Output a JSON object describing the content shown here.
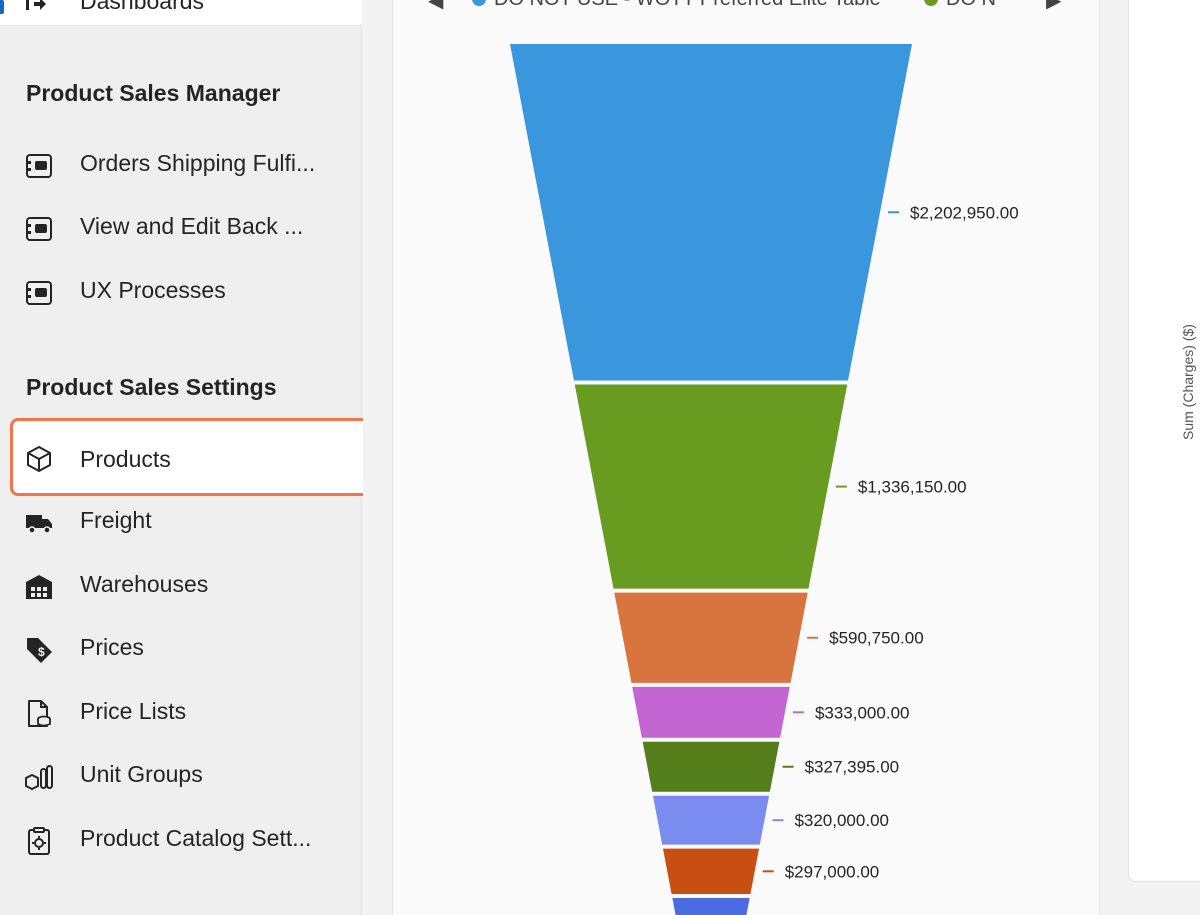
{
  "sidebar": {
    "dashboards_label": "Dashboards",
    "sections": [
      {
        "title": "Product Sales Manager",
        "items": [
          {
            "label": "Orders Shipping Fulfi...",
            "icon": "entity-icon"
          },
          {
            "label": "View and Edit Back ...",
            "icon": "entity-icon"
          },
          {
            "label": "UX Processes",
            "icon": "entity-icon"
          }
        ]
      },
      {
        "title": "Product Sales Settings",
        "items": [
          {
            "label": "Products",
            "icon": "cube-icon",
            "selected": true
          },
          {
            "label": "Freight",
            "icon": "truck-icon"
          },
          {
            "label": "Warehouses",
            "icon": "warehouse-icon"
          },
          {
            "label": "Prices",
            "icon": "price-tag-icon"
          },
          {
            "label": "Price Lists",
            "icon": "price-list-icon"
          },
          {
            "label": "Unit Groups",
            "icon": "unit-groups-icon"
          },
          {
            "label": "Product Catalog Sett...",
            "icon": "catalog-settings-icon"
          }
        ]
      }
    ]
  },
  "legend": {
    "items": [
      {
        "label": "DO NOT USE - WOTT Preferred Elite Table",
        "color": "#3a96dd"
      },
      {
        "label": "DO N",
        "color": "#6a9a23"
      }
    ]
  },
  "y_axis_label": "Sum (Charges) ($)",
  "colors": {
    "accent": "#0f6cbd",
    "selection_border": "#f5754a"
  },
  "chart_data": {
    "type": "funnel",
    "values": [
      2202950,
      1336150,
      590750,
      333000,
      327395,
      320000,
      297000
    ],
    "labels": [
      "$2,202,950.00",
      "$1,336,150.00",
      "$590,750.00",
      "$333,000.00",
      "$327,395.00",
      "$320,000.00",
      "$297,000.00"
    ],
    "colors": [
      "#3a96dd",
      "#689c21",
      "#d8743e",
      "#c465d4",
      "#537e1a",
      "#7a8cf0",
      "#c84f12",
      "#4a6ce0"
    ],
    "partial_last_segment": true
  }
}
